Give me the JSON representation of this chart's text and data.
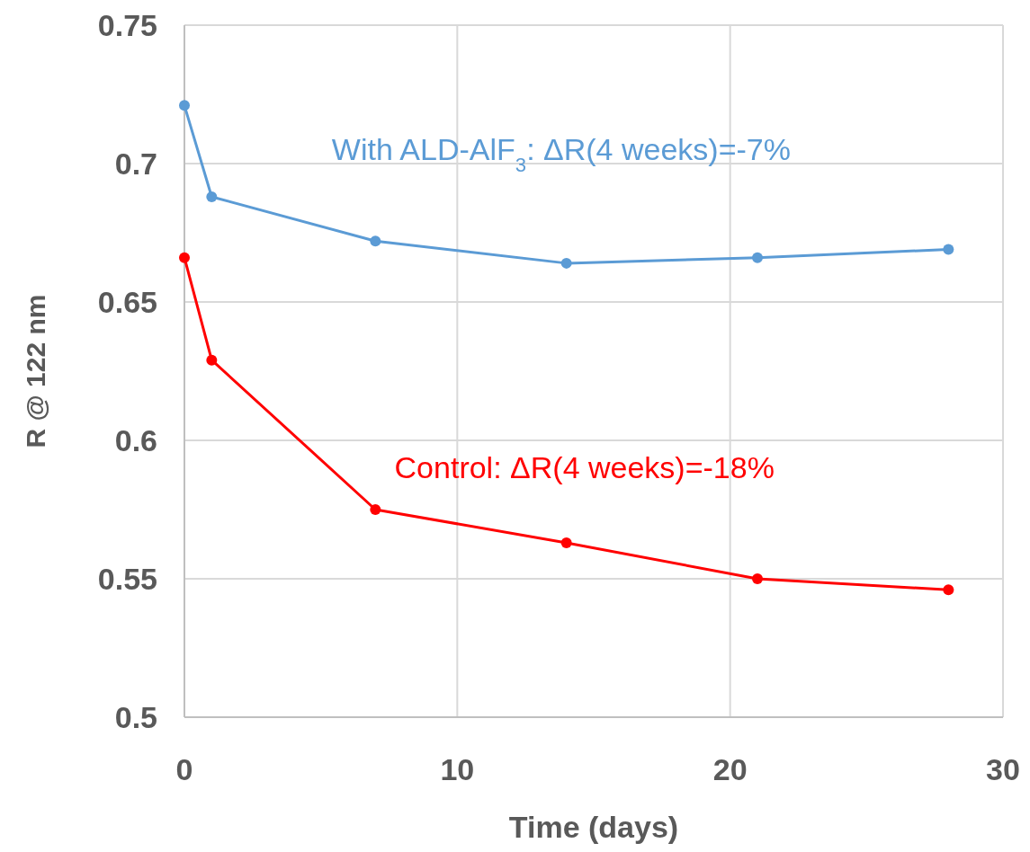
{
  "chart_data": {
    "type": "line",
    "xlabel": "Time (days)",
    "ylabel": "R @ 122 nm",
    "x": [
      0,
      1,
      7,
      14,
      21,
      28
    ],
    "series": [
      {
        "name": "With ALD-AlF$_{3}$: ΔR(4 weeks)=-7%",
        "color": "#5b9bd5",
        "values": [
          0.721,
          0.688,
          0.672,
          0.664,
          0.666,
          0.669
        ]
      },
      {
        "name": "Control: ΔR(4 weeks)=-18%",
        "color": "#ff0000",
        "values": [
          0.666,
          0.629,
          0.575,
          0.563,
          0.55,
          0.546
        ]
      }
    ],
    "xlim": [
      0,
      30
    ],
    "xticks": [
      0,
      10,
      20,
      30
    ],
    "ylim": [
      0.5,
      0.75
    ],
    "yticks": [
      0.5,
      0.55,
      0.6,
      0.65,
      0.7,
      0.75
    ],
    "grid": true,
    "marker": "circle",
    "line_style": "solid"
  }
}
